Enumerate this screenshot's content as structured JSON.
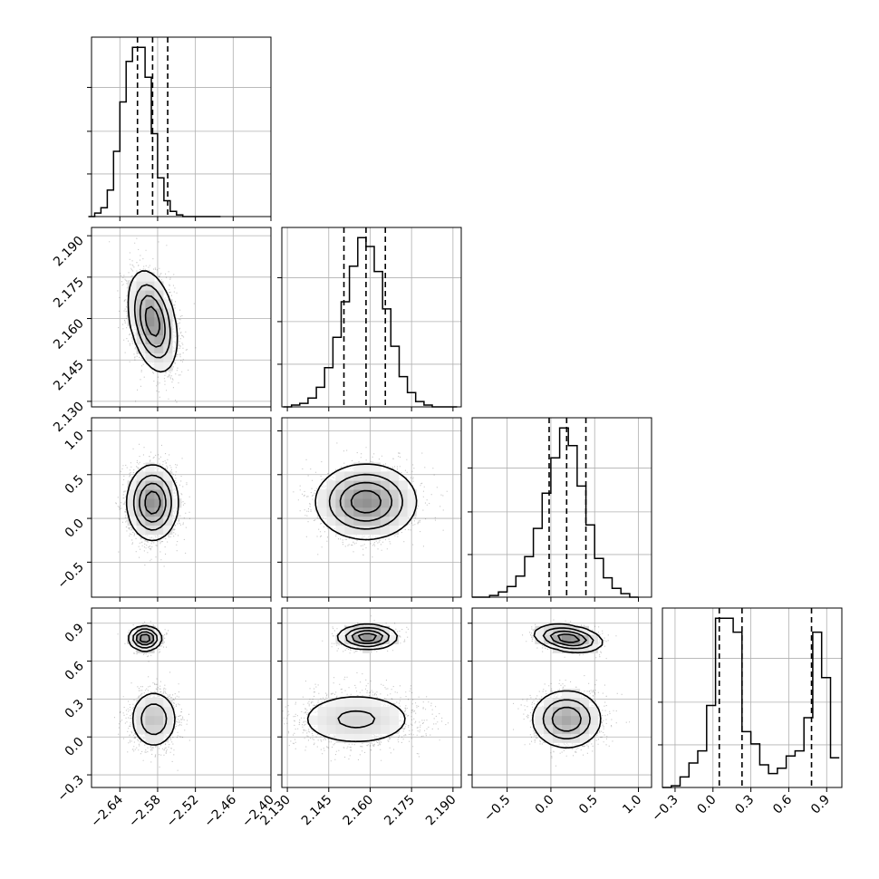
{
  "chart_data": {
    "type": "corner",
    "params": [
      {
        "range": [
          -2.685,
          -2.4
        ],
        "ticks": [
          "−2.64",
          "−2.58",
          "−2.52",
          "−2.46",
          "−2.40"
        ],
        "tick_values": [
          -2.64,
          -2.58,
          -2.52,
          -2.46,
          -2.4
        ]
      },
      {
        "range": [
          2.128,
          2.193
        ],
        "ticks": [
          "2.130",
          "2.145",
          "2.160",
          "2.175",
          "2.190"
        ],
        "tick_values": [
          2.13,
          2.145,
          2.16,
          2.175,
          2.19
        ]
      },
      {
        "range": [
          -0.9,
          1.15
        ],
        "ticks": [
          "−0.5",
          "0.0",
          "0.5",
          "1.0"
        ],
        "tick_values": [
          -0.5,
          0.0,
          0.5,
          1.0
        ]
      },
      {
        "range": [
          -0.4,
          1.02
        ],
        "ticks": [
          "−0.3",
          "0.0",
          "0.3",
          "0.6",
          "0.9"
        ],
        "tick_values": [
          -0.3,
          0.0,
          0.3,
          0.6,
          0.9
        ]
      }
    ],
    "quantiles": [
      [
        -2.612,
        -2.588,
        -2.564
      ],
      [
        2.1505,
        2.1585,
        2.1655
      ],
      [
        -0.02,
        0.18,
        0.4
      ],
      [
        0.05,
        0.23,
        0.78
      ]
    ],
    "histograms": [
      {
        "edges": [
          -2.69,
          -2.68,
          -2.67,
          -2.66,
          -2.65,
          -2.64,
          -2.63,
          -2.62,
          -2.61,
          -2.6,
          -2.59,
          -2.58,
          -2.57,
          -2.56,
          -2.55,
          -2.54,
          -2.53,
          -2.52,
          -2.51,
          -2.5,
          -2.49,
          -2.48
        ],
        "counts": [
          0,
          2,
          5,
          15,
          37,
          65,
          88,
          96,
          96,
          79,
          47,
          22,
          9,
          3,
          1,
          0,
          0,
          0,
          0,
          0,
          0
        ]
      },
      {
        "edges": [
          2.1285,
          2.1315,
          2.1345,
          2.1375,
          2.1405,
          2.1435,
          2.1465,
          2.1495,
          2.1525,
          2.1555,
          2.1585,
          2.1615,
          2.1645,
          2.1675,
          2.1705,
          2.1735,
          2.1765,
          2.1795,
          2.1825,
          2.1855,
          2.1885,
          2.1915
        ],
        "counts": [
          0,
          1,
          2,
          5,
          11,
          22,
          39,
          59,
          79,
          95,
          90,
          76,
          55,
          34,
          17,
          8,
          3,
          1,
          0,
          0,
          0
        ]
      },
      {
        "edges": [
          -0.9,
          -0.8,
          -0.7,
          -0.6,
          -0.5,
          -0.4,
          -0.3,
          -0.2,
          -0.1,
          0.0,
          0.1,
          0.2,
          0.3,
          0.4,
          0.5,
          0.6,
          0.7,
          0.8,
          0.9,
          1.0
        ],
        "counts": [
          0,
          0,
          1,
          3,
          6,
          12,
          23,
          39,
          59,
          79,
          96,
          86,
          63,
          41,
          22,
          11,
          5,
          2,
          0
        ]
      },
      {
        "edges": [
          -0.4,
          -0.33,
          -0.26,
          -0.19,
          -0.12,
          -0.05,
          0.02,
          0.09,
          0.16,
          0.23,
          0.3,
          0.37,
          0.44,
          0.51,
          0.58,
          0.65,
          0.72,
          0.79,
          0.86,
          0.93,
          1.0
        ],
        "counts": [
          0,
          1,
          6,
          14,
          21,
          47,
          97,
          97,
          89,
          32,
          25,
          13,
          8,
          11,
          18,
          21,
          40,
          89,
          63,
          17
        ]
      }
    ],
    "pairs": [
      {
        "row": 1,
        "col": 0,
        "components": [
          {
            "mx": -2.588,
            "my": 2.159,
            "sx": 0.018,
            "sy": 0.0085,
            "rho": -0.35,
            "w": 1
          }
        ]
      },
      {
        "row": 2,
        "col": 0,
        "components": [
          {
            "mx": -2.588,
            "my": 0.18,
            "sx": 0.019,
            "sy": 0.2,
            "rho": 0,
            "w": 1
          }
        ]
      },
      {
        "row": 2,
        "col": 1,
        "components": [
          {
            "mx": 2.1585,
            "my": 0.19,
            "sx": 0.0085,
            "sy": 0.2,
            "rho": 0,
            "w": 1
          }
        ]
      },
      {
        "row": 3,
        "col": 0,
        "components": [
          {
            "mx": -2.6,
            "my": 0.78,
            "sx": 0.012,
            "sy": 0.045,
            "rho": 0,
            "w": 0.35
          },
          {
            "mx": -2.586,
            "my": 0.14,
            "sx": 0.018,
            "sy": 0.11,
            "rho": 0,
            "w": 0.65
          }
        ]
      },
      {
        "row": 3,
        "col": 1,
        "components": [
          {
            "mx": 2.159,
            "my": 0.79,
            "sx": 0.005,
            "sy": 0.045,
            "rho": 0,
            "w": 0.35
          },
          {
            "mx": 2.155,
            "my": 0.14,
            "sx": 0.011,
            "sy": 0.11,
            "rho": 0,
            "w": 0.65
          }
        ]
      },
      {
        "row": 3,
        "col": 2,
        "components": [
          {
            "mx": 0.2,
            "my": 0.78,
            "sx": 0.18,
            "sy": 0.05,
            "rho": -0.3,
            "w": 0.35
          },
          {
            "mx": 0.18,
            "my": 0.14,
            "sx": 0.19,
            "sy": 0.11,
            "rho": 0,
            "w": 0.65
          }
        ]
      }
    ],
    "grid": true
  }
}
